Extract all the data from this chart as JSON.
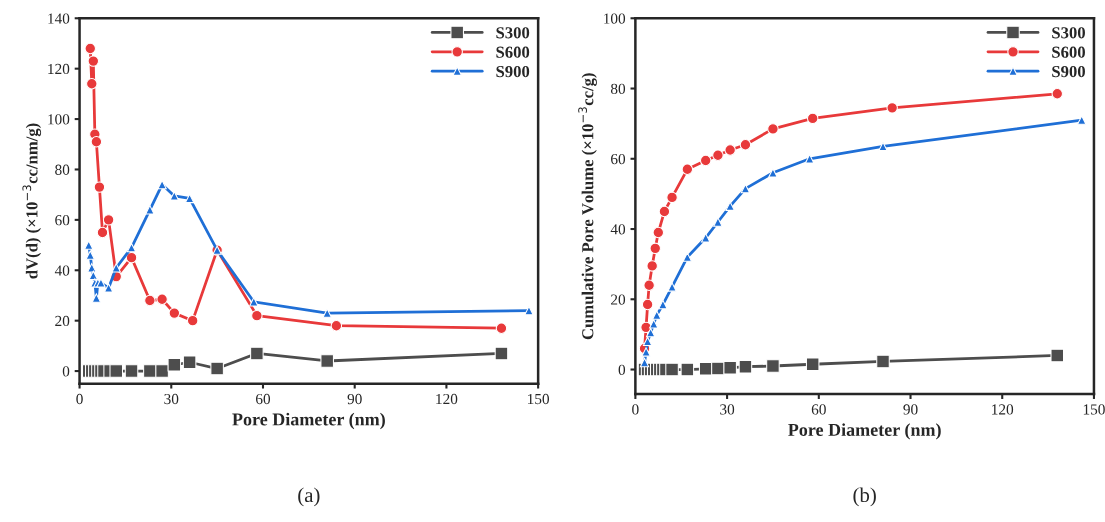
{
  "chart_data": [
    {
      "type": "line",
      "xlabel": "Pore Diameter (nm)",
      "ylabel": "dV(d) (×10$^{−3}$cc/nm/g)",
      "xlim": [
        0,
        150
      ],
      "xticks": [
        0,
        30,
        60,
        90,
        120,
        150
      ],
      "ylim": [
        -5,
        140
      ],
      "yticks": [
        0,
        20,
        40,
        60,
        80,
        100,
        120,
        140
      ],
      "legend": "top right",
      "grid": false,
      "annotations": [
        "(a)"
      ],
      "series": [
        {
          "name": "S300",
          "color": "#4d4d4d",
          "marker": "square",
          "x": [
            3,
            4,
            5,
            6,
            7,
            8,
            10,
            12,
            17,
            23,
            27,
            31,
            36,
            45,
            58,
            81,
            138
          ],
          "values": [
            0,
            0,
            0,
            0,
            0,
            0,
            0,
            0,
            0,
            0,
            0,
            2.5,
            3.5,
            1,
            7,
            4,
            7
          ]
        },
        {
          "name": "S600",
          "color": "#e8393a",
          "marker": "circle",
          "x": [
            3.5,
            4,
            4.5,
            5,
            5.5,
            6.5,
            7.5,
            9.5,
            12,
            17,
            23,
            27,
            31,
            37,
            45,
            58,
            84,
            138
          ],
          "values": [
            128,
            114,
            123,
            94,
            91,
            73,
            55,
            60,
            37.5,
            45,
            28,
            28.5,
            23,
            20,
            48,
            22,
            18,
            17
          ]
        },
        {
          "name": "S900",
          "color": "#1f6fd6",
          "marker": "triangle",
          "x": [
            3,
            3.5,
            4,
            4.5,
            5,
            5.5,
            6,
            7,
            9.5,
            12,
            17,
            23,
            27,
            31,
            36,
            45,
            57,
            81,
            147
          ],
          "values": [
            50,
            46,
            41,
            38,
            35,
            29,
            35,
            35,
            33,
            41,
            49,
            64,
            74,
            69.5,
            68.5,
            48,
            27.5,
            23,
            24
          ]
        }
      ]
    },
    {
      "type": "line",
      "xlabel": "Pore Diameter (nm)",
      "ylabel": "Cumulative Pore Volume (×10$^{−3}$cc/g)",
      "xlim": [
        0,
        150
      ],
      "xticks": [
        0,
        30,
        60,
        90,
        120,
        150
      ],
      "ylim": [
        -7,
        100
      ],
      "yticks": [
        0,
        20,
        40,
        60,
        80,
        100
      ],
      "legend": "top right",
      "grid": false,
      "annotations": [
        "(b)"
      ],
      "series": [
        {
          "name": "S300",
          "color": "#4d4d4d",
          "marker": "square",
          "x": [
            3,
            4,
            5,
            6,
            7,
            8,
            9,
            10,
            12,
            17,
            23,
            27,
            31,
            36,
            45,
            58,
            81,
            138
          ],
          "values": [
            0,
            0,
            0,
            0,
            0,
            0,
            0,
            0,
            0,
            0,
            0.2,
            0.3,
            0.5,
            0.8,
            1,
            1.5,
            2.3,
            4
          ]
        },
        {
          "name": "S600",
          "color": "#e8393a",
          "marker": "circle",
          "x": [
            3,
            3.5,
            4,
            4.5,
            5.5,
            6.5,
            7.5,
            9.5,
            12,
            17,
            23,
            27,
            31,
            36,
            45,
            58,
            84,
            138
          ],
          "values": [
            6,
            12,
            18.5,
            24,
            29.5,
            34.5,
            39,
            45,
            49,
            57,
            59.5,
            61,
            62.5,
            64,
            68.5,
            71.5,
            74.5,
            78.5
          ]
        },
        {
          "name": "S900",
          "color": "#1f6fd6",
          "marker": "triangle",
          "x": [
            3,
            3.5,
            4,
            5,
            6,
            7,
            9,
            12,
            17,
            23,
            27,
            31,
            36,
            45,
            57,
            81,
            146
          ],
          "values": [
            2,
            5,
            8,
            10.5,
            13,
            15.5,
            18.5,
            23.5,
            32,
            37.5,
            42,
            46.5,
            51.5,
            56,
            60,
            63.5,
            71
          ]
        }
      ]
    }
  ]
}
